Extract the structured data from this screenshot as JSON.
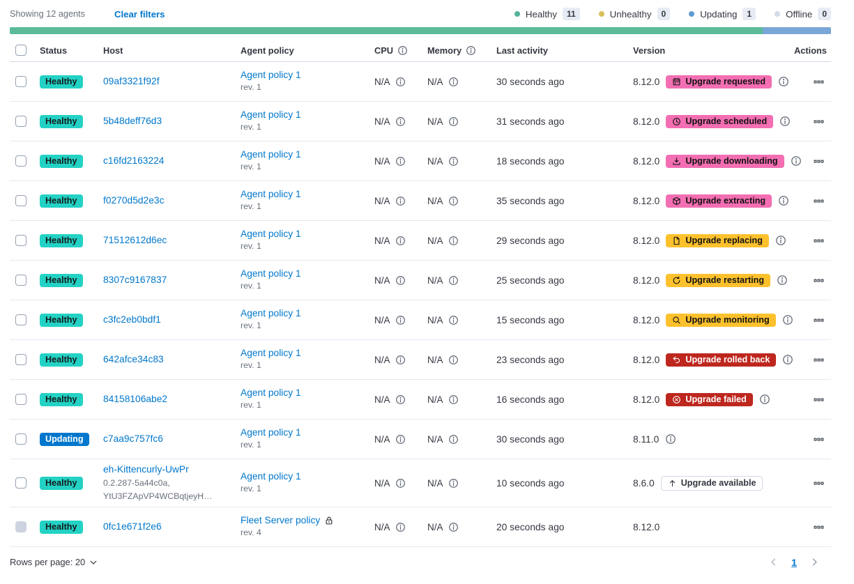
{
  "toolbar": {
    "showing": "Showing 12 agents",
    "clear_filters": "Clear filters"
  },
  "legend": {
    "items": [
      {
        "label": "Healthy",
        "count": "11",
        "color": "#54B399"
      },
      {
        "label": "Unhealthy",
        "count": "0",
        "color": "#D6BF57"
      },
      {
        "label": "Updating",
        "count": "1",
        "color": "#5E9BD3"
      },
      {
        "label": "Offline",
        "count": "0",
        "color": "#D3DAE6"
      }
    ]
  },
  "health_bar": {
    "segments": [
      {
        "status": "healthy",
        "color": "#5BBB99",
        "weight": 11
      },
      {
        "status": "updating",
        "color": "#78A6D6",
        "weight": 1
      }
    ]
  },
  "table": {
    "headers": [
      {
        "id": "status",
        "label": "Status"
      },
      {
        "id": "host",
        "label": "Host"
      },
      {
        "id": "policy",
        "label": "Agent policy"
      },
      {
        "id": "cpu",
        "label": "CPU",
        "info": true
      },
      {
        "id": "memory",
        "label": "Memory",
        "info": true
      },
      {
        "id": "last_activity",
        "label": "Last activity"
      },
      {
        "id": "version",
        "label": "Version"
      },
      {
        "id": "actions",
        "label": "Actions"
      }
    ],
    "rows": [
      {
        "status": "Healthy",
        "status_style": "healthy",
        "host": "09af3321f92f",
        "host_sub": [],
        "policy": "Agent policy 1",
        "policy_rev": "rev. 1",
        "policy_locked": false,
        "cpu": "N/A",
        "memory": "N/A",
        "last_activity": "30 seconds ago",
        "version": "8.12.0",
        "upgrade": {
          "label": "Upgrade requested",
          "icon": "calendar",
          "style": "accent"
        },
        "version_info": false,
        "badge_info": true,
        "checkbox_disabled": false
      },
      {
        "status": "Healthy",
        "status_style": "healthy",
        "host": "5b48deff76d3",
        "host_sub": [],
        "policy": "Agent policy 1",
        "policy_rev": "rev. 1",
        "policy_locked": false,
        "cpu": "N/A",
        "memory": "N/A",
        "last_activity": "31 seconds ago",
        "version": "8.12.0",
        "upgrade": {
          "label": "Upgrade scheduled",
          "icon": "clock",
          "style": "accent"
        },
        "version_info": false,
        "badge_info": true,
        "checkbox_disabled": false
      },
      {
        "status": "Healthy",
        "status_style": "healthy",
        "host": "c16fd2163224",
        "host_sub": [],
        "policy": "Agent policy 1",
        "policy_rev": "rev. 1",
        "policy_locked": false,
        "cpu": "N/A",
        "memory": "N/A",
        "last_activity": "18 seconds ago",
        "version": "8.12.0",
        "upgrade": {
          "label": "Upgrade downloading",
          "icon": "download",
          "style": "accent"
        },
        "version_info": false,
        "badge_info": true,
        "checkbox_disabled": false
      },
      {
        "status": "Healthy",
        "status_style": "healthy",
        "host": "f0270d5d2e3c",
        "host_sub": [],
        "policy": "Agent policy 1",
        "policy_rev": "rev. 1",
        "policy_locked": false,
        "cpu": "N/A",
        "memory": "N/A",
        "last_activity": "35 seconds ago",
        "version": "8.12.0",
        "upgrade": {
          "label": "Upgrade extracting",
          "icon": "package",
          "style": "accent"
        },
        "version_info": false,
        "badge_info": true,
        "checkbox_disabled": false
      },
      {
        "status": "Healthy",
        "status_style": "healthy",
        "host": "71512612d6ec",
        "host_sub": [],
        "policy": "Agent policy 1",
        "policy_rev": "rev. 1",
        "policy_locked": false,
        "cpu": "N/A",
        "memory": "N/A",
        "last_activity": "29 seconds ago",
        "version": "8.12.0",
        "upgrade": {
          "label": "Upgrade replacing",
          "icon": "document",
          "style": "warning"
        },
        "version_info": false,
        "badge_info": true,
        "checkbox_disabled": false
      },
      {
        "status": "Healthy",
        "status_style": "healthy",
        "host": "8307c9167837",
        "host_sub": [],
        "policy": "Agent policy 1",
        "policy_rev": "rev. 1",
        "policy_locked": false,
        "cpu": "N/A",
        "memory": "N/A",
        "last_activity": "25 seconds ago",
        "version": "8.12.0",
        "upgrade": {
          "label": "Upgrade restarting",
          "icon": "refresh",
          "style": "warning"
        },
        "version_info": false,
        "badge_info": true,
        "checkbox_disabled": false
      },
      {
        "status": "Healthy",
        "status_style": "healthy",
        "host": "c3fc2eb0bdf1",
        "host_sub": [],
        "policy": "Agent policy 1",
        "policy_rev": "rev. 1",
        "policy_locked": false,
        "cpu": "N/A",
        "memory": "N/A",
        "last_activity": "15 seconds ago",
        "version": "8.12.0",
        "upgrade": {
          "label": "Upgrade monitoring",
          "icon": "inspect",
          "style": "warning"
        },
        "version_info": false,
        "badge_info": true,
        "checkbox_disabled": false
      },
      {
        "status": "Healthy",
        "status_style": "healthy",
        "host": "642afce34c83",
        "host_sub": [],
        "policy": "Agent policy 1",
        "policy_rev": "rev. 1",
        "policy_locked": false,
        "cpu": "N/A",
        "memory": "N/A",
        "last_activity": "23 seconds ago",
        "version": "8.12.0",
        "upgrade": {
          "label": "Upgrade rolled back",
          "icon": "return",
          "style": "danger"
        },
        "version_info": false,
        "badge_info": true,
        "checkbox_disabled": false
      },
      {
        "status": "Healthy",
        "status_style": "healthy",
        "host": "84158106abe2",
        "host_sub": [],
        "policy": "Agent policy 1",
        "policy_rev": "rev. 1",
        "policy_locked": false,
        "cpu": "N/A",
        "memory": "N/A",
        "last_activity": "16 seconds ago",
        "version": "8.12.0",
        "upgrade": {
          "label": "Upgrade failed",
          "icon": "error",
          "style": "danger"
        },
        "version_info": false,
        "badge_info": true,
        "checkbox_disabled": false
      },
      {
        "status": "Updating",
        "status_style": "updating",
        "host": "c7aa9c757fc6",
        "host_sub": [],
        "policy": "Agent policy 1",
        "policy_rev": "rev. 1",
        "policy_locked": false,
        "cpu": "N/A",
        "memory": "N/A",
        "last_activity": "30 seconds ago",
        "version": "8.11.0",
        "upgrade": null,
        "version_info": true,
        "badge_info": false,
        "checkbox_disabled": false
      },
      {
        "status": "Healthy",
        "status_style": "healthy",
        "host": "eh-Kittencurly-UwPr",
        "host_sub": [
          "0.2.287-5a44c0a,",
          "YtU3FZApVP4WCBqtjeyH…"
        ],
        "policy": "Agent policy 1",
        "policy_rev": "rev. 1",
        "policy_locked": false,
        "cpu": "N/A",
        "memory": "N/A",
        "last_activity": "10 seconds ago",
        "version": "8.6.0",
        "upgrade": {
          "label": "Upgrade available",
          "icon": "arrow-up",
          "style": "hollow"
        },
        "version_info": false,
        "badge_info": false,
        "checkbox_disabled": false
      },
      {
        "status": "Healthy",
        "status_style": "healthy",
        "host": "0fc1e671f2e6",
        "host_sub": [],
        "policy": "Fleet Server policy",
        "policy_rev": "rev. 4",
        "policy_locked": true,
        "cpu": "N/A",
        "memory": "N/A",
        "last_activity": "20 seconds ago",
        "version": "8.12.0",
        "upgrade": null,
        "version_info": false,
        "badge_info": false,
        "checkbox_disabled": true
      }
    ]
  },
  "footer": {
    "rows_per_page": "Rows per page: 20",
    "page": "1"
  }
}
